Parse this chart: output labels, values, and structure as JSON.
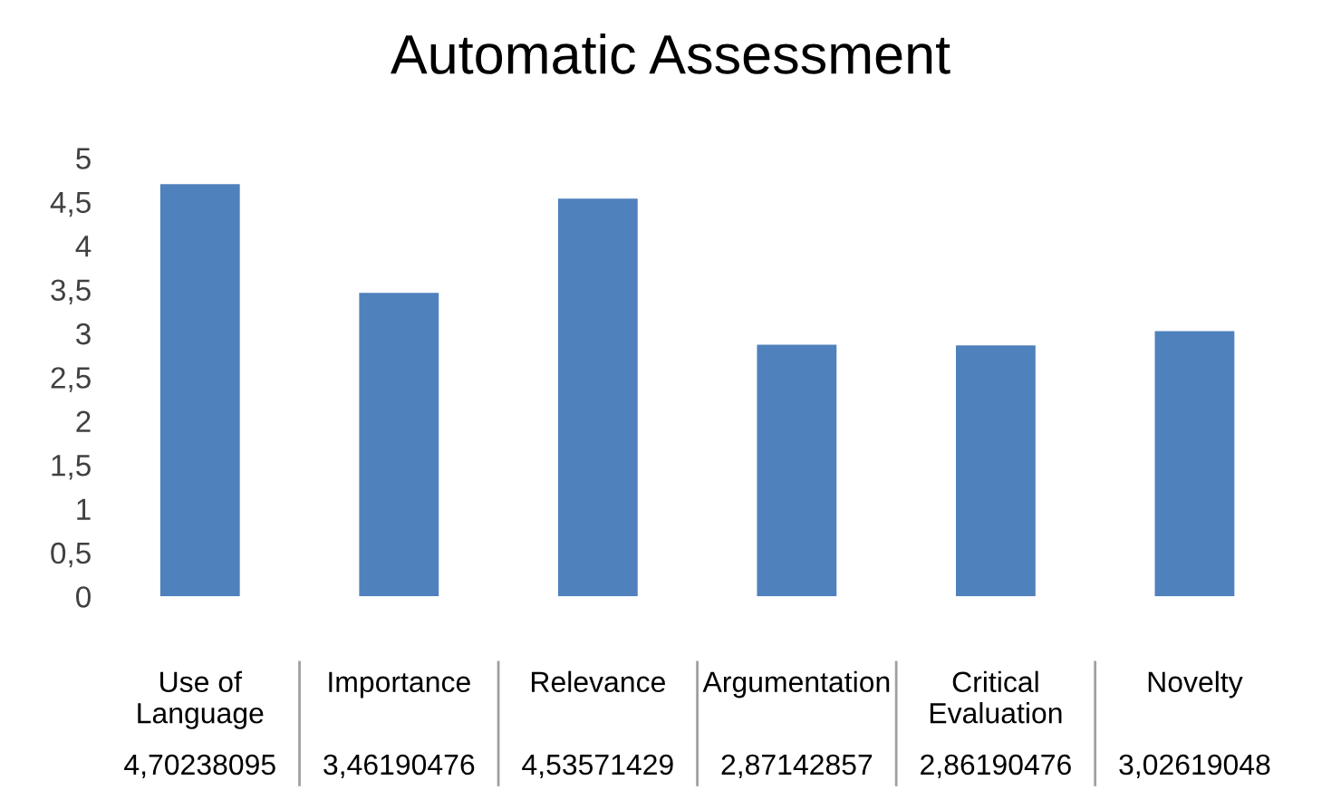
{
  "chart_data": {
    "type": "bar",
    "title": "Automatic Assessment",
    "categories": [
      "Use of Language",
      "Importance",
      "Relevance",
      "Argumentation",
      "Critical Evaluation",
      "Novelty"
    ],
    "values": [
      4.70238095,
      3.46190476,
      4.53571429,
      2.87142857,
      2.86190476,
      3.02619048
    ],
    "value_labels": [
      "4,70238095",
      "3,46190476",
      "4,53571429",
      "2,87142857",
      "2,86190476",
      "3,02619048"
    ],
    "color": "#4f81bd",
    "ylim": [
      0,
      5
    ],
    "yticks": [
      0,
      {
        "value": 0.5,
        "label": "0,5"
      },
      1,
      {
        "value": 1.5,
        "label": "1,5"
      },
      2,
      {
        "value": 2.5,
        "label": "2,5"
      },
      3,
      {
        "value": 3.5,
        "label": "3,5"
      },
      4,
      {
        "value": 4.5,
        "label": "4,5"
      },
      5
    ],
    "grid": false,
    "legend": false
  }
}
